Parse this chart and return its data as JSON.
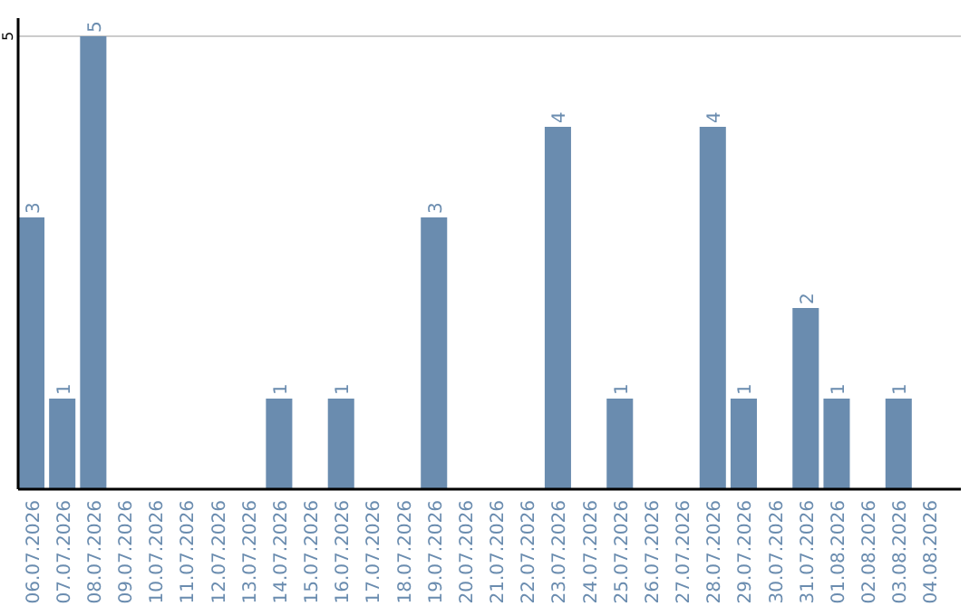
{
  "chart_data": {
    "type": "bar",
    "categories": [
      "06.07.2026",
      "07.07.2026",
      "08.07.2026",
      "09.07.2026",
      "10.07.2026",
      "11.07.2026",
      "12.07.2026",
      "13.07.2026",
      "14.07.2026",
      "15.07.2026",
      "16.07.2026",
      "17.07.2026",
      "18.07.2026",
      "19.07.2026",
      "20.07.2026",
      "21.07.2026",
      "22.07.2026",
      "23.07.2026",
      "24.07.2026",
      "25.07.2026",
      "26.07.2026",
      "27.07.2026",
      "28.07.2026",
      "29.07.2026",
      "30.07.2026",
      "31.07.2026",
      "01.08.2026",
      "02.08.2026",
      "03.08.2026",
      "04.08.2026"
    ],
    "values": [
      3,
      1,
      5,
      0,
      0,
      0,
      0,
      0,
      1,
      0,
      1,
      0,
      0,
      3,
      0,
      0,
      0,
      4,
      0,
      1,
      0,
      0,
      4,
      1,
      0,
      2,
      1,
      0,
      1,
      0
    ],
    "value_labels": [
      "3",
      "1",
      "5",
      null,
      null,
      null,
      null,
      null,
      "1",
      null,
      "1",
      null,
      null,
      "3",
      null,
      null,
      null,
      "4",
      null,
      "1",
      null,
      null,
      "4",
      "1",
      null,
      "2",
      "1",
      null,
      "1",
      null
    ],
    "color": "#6a8caf",
    "ylim": [
      0,
      5.2
    ],
    "yticks": [
      5
    ],
    "grid": "y"
  }
}
